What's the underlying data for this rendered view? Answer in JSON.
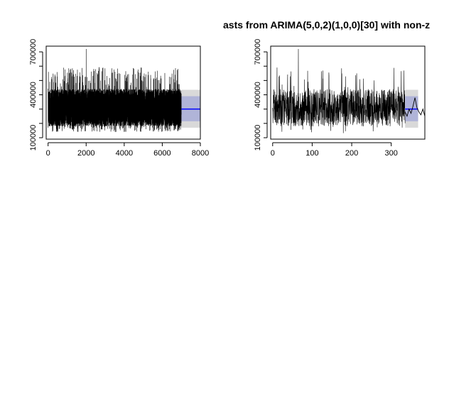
{
  "title": "asts from ARIMA(5,0,2)(1,0,0)[30] with non-z",
  "chart_data": [
    {
      "type": "line",
      "title": "",
      "xlabel": "",
      "ylabel": "",
      "xlim": [
        -100,
        8000
      ],
      "ylim": [
        90000,
        740000
      ],
      "x_ticks": [
        0,
        2000,
        4000,
        6000,
        8000
      ],
      "x_tick_labels": [
        "0",
        "2000",
        "4000",
        "6000",
        "8000"
      ],
      "y_ticks": [
        100000,
        200000,
        300000,
        400000,
        500000,
        600000,
        700000
      ],
      "y_tick_labels": [
        "100000",
        "",
        "",
        "400000",
        "",
        "",
        "700000"
      ],
      "series": [
        {
          "role": "observed",
          "color": "#000000",
          "n_points": 7000,
          "x_range": [
            0,
            7000
          ],
          "level": 300000,
          "typical_range": [
            180000,
            440000
          ],
          "min": 140000,
          "max": 720000,
          "peak_x": 2000
        },
        {
          "role": "forecast-mean",
          "color": "#0000ff",
          "x_range": [
            7000,
            8000
          ],
          "value": 300000
        }
      ],
      "intervals": [
        {
          "level": "95%",
          "color": "#d9d9d9",
          "x_range": [
            7000,
            8000
          ],
          "y_range": [
            170000,
            435000
          ]
        },
        {
          "level": "80%",
          "color": "#b0b4d8",
          "x_range": [
            7000,
            8000
          ],
          "y_range": [
            215000,
            390000
          ]
        }
      ],
      "grid": false
    },
    {
      "type": "line",
      "title": "",
      "xlabel": "",
      "ylabel": "",
      "xlim": [
        -5,
        385
      ],
      "ylim": [
        90000,
        740000
      ],
      "x_ticks": [
        0,
        100,
        200,
        300
      ],
      "x_tick_labels": [
        "0",
        "100",
        "200",
        "300"
      ],
      "y_ticks": [
        100000,
        200000,
        300000,
        400000,
        500000,
        600000,
        700000
      ],
      "y_tick_labels": [
        "100000",
        "",
        "",
        "400000",
        "",
        "",
        "700000"
      ],
      "series": [
        {
          "role": "observed",
          "color": "#000000",
          "n_points": 1000,
          "x_range": [
            0,
            335
          ],
          "level": 300000,
          "typical_range": [
            180000,
            440000
          ],
          "min": 130000,
          "max": 720000,
          "peak_x": 65
        },
        {
          "role": "forecast-mean",
          "color": "#0000ff",
          "x_range": [
            335,
            368
          ],
          "value": 300000
        },
        {
          "role": "overlay",
          "color": "#000000",
          "x": [
            335,
            340,
            345,
            350,
            355,
            360,
            365,
            370,
            375,
            380,
            385
          ],
          "values": [
            280000,
            250000,
            300000,
            270000,
            320000,
            380000,
            310000,
            280000,
            260000,
            300000,
            250000
          ]
        }
      ],
      "intervals": [
        {
          "level": "95%",
          "color": "#d9d9d9",
          "x_range": [
            335,
            368
          ],
          "y_range": [
            170000,
            435000
          ]
        },
        {
          "level": "80%",
          "color": "#b0b4d8",
          "x_range": [
            335,
            368
          ],
          "y_range": [
            215000,
            390000
          ]
        }
      ],
      "grid": false
    }
  ]
}
